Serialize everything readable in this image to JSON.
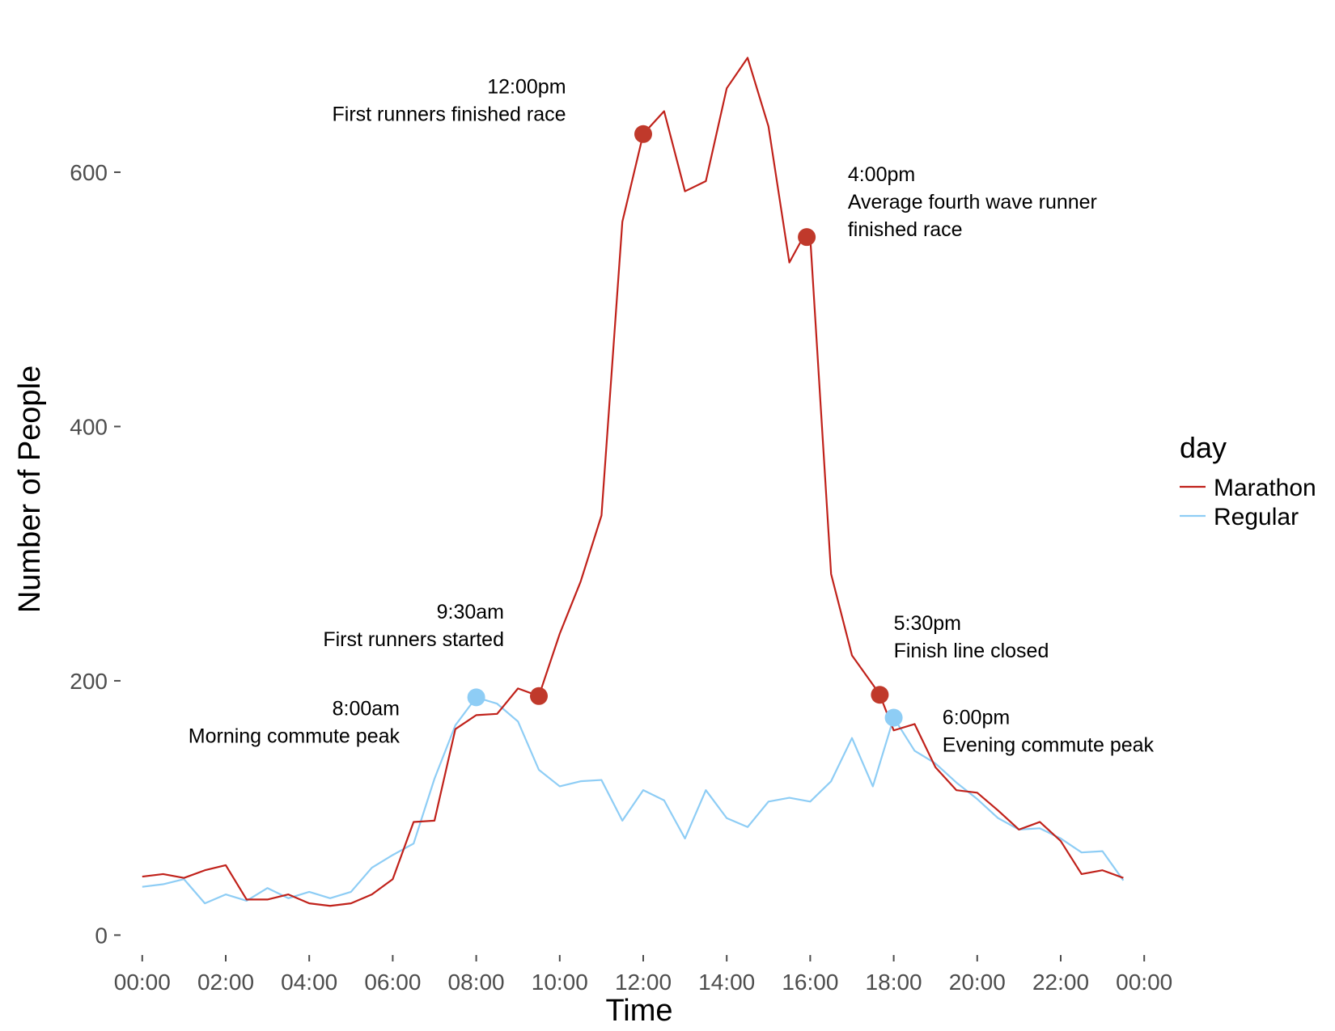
{
  "chart_data": {
    "type": "line",
    "xlabel": "Time",
    "ylabel": "Number of People",
    "ylim": [
      -15,
      710
    ],
    "x_range_hours": [
      -0.5,
      24.5
    ],
    "x_ticks": [
      "00:00",
      "02:00",
      "04:00",
      "06:00",
      "08:00",
      "10:00",
      "12:00",
      "14:00",
      "16:00",
      "18:00",
      "20:00",
      "22:00",
      "00:00"
    ],
    "y_ticks": [
      "0",
      "200",
      "400",
      "600"
    ],
    "y_tick_values": [
      0,
      200,
      400,
      600
    ],
    "grid": false,
    "legend": {
      "title": "day",
      "position": "right",
      "items": [
        "Marathon",
        "Regular"
      ]
    },
    "series": [
      {
        "name": "Marathon",
        "color": "#c0211a",
        "x": [
          "00:00",
          "00:30",
          "01:00",
          "01:30",
          "02:00",
          "02:30",
          "03:00",
          "03:30",
          "04:00",
          "04:30",
          "05:00",
          "05:30",
          "06:00",
          "06:30",
          "07:00",
          "07:30",
          "08:00",
          "08:30",
          "09:00",
          "09:30",
          "10:00",
          "10:30",
          "11:00",
          "11:30",
          "12:00",
          "12:30",
          "13:00",
          "13:30",
          "14:00",
          "14:30",
          "15:00",
          "15:30",
          "15:50",
          "16:00",
          "16:30",
          "17:00",
          "17:30",
          "17:40",
          "18:00",
          "18:30",
          "19:00",
          "19:30",
          "20:00",
          "20:30",
          "21:00",
          "21:30",
          "22:00",
          "22:30",
          "23:00",
          "23:30"
        ],
        "values": [
          46,
          48,
          45,
          51,
          55,
          28,
          28,
          32,
          25,
          23,
          25,
          32,
          44,
          89,
          90,
          162,
          173,
          174,
          194,
          188,
          237,
          278,
          330,
          561,
          630,
          648,
          585,
          593,
          666,
          690,
          636,
          529,
          549,
          549,
          284,
          220,
          197,
          189,
          161,
          166,
          132,
          114,
          112,
          98,
          83,
          89,
          74,
          48,
          51,
          45
        ]
      },
      {
        "name": "Regular",
        "color": "#8ecdf5",
        "x": [
          "00:00",
          "00:30",
          "01:00",
          "01:30",
          "02:00",
          "02:30",
          "03:00",
          "03:30",
          "04:00",
          "04:30",
          "05:00",
          "05:30",
          "06:00",
          "06:30",
          "07:00",
          "07:30",
          "08:00",
          "08:30",
          "09:00",
          "09:30",
          "10:00",
          "10:30",
          "11:00",
          "11:30",
          "12:00",
          "12:30",
          "13:00",
          "13:30",
          "14:00",
          "14:30",
          "15:00",
          "15:30",
          "16:00",
          "16:30",
          "17:00",
          "17:30",
          "18:00",
          "18:30",
          "19:00",
          "19:30",
          "20:00",
          "20:30",
          "21:00",
          "21:30",
          "22:00",
          "22:30",
          "23:00",
          "23:30"
        ],
        "values": [
          38,
          40,
          44,
          25,
          32,
          27,
          37,
          29,
          34,
          29,
          34,
          53,
          63,
          72,
          123,
          165,
          187,
          182,
          168,
          130,
          117,
          121,
          122,
          90,
          114,
          106,
          76,
          114,
          92,
          85,
          105,
          108,
          105,
          121,
          155,
          117,
          171,
          145,
          135,
          120,
          107,
          92,
          83,
          84,
          76,
          65,
          66,
          43
        ]
      }
    ],
    "highlight_points": [
      {
        "x": "08:00",
        "y": 187,
        "color": "#8ecdf5"
      },
      {
        "x": "09:30",
        "y": 188,
        "color": "#c0392b"
      },
      {
        "x": "12:00",
        "y": 630,
        "color": "#c0392b"
      },
      {
        "x": "15:55",
        "y": 549,
        "color": "#c0392b"
      },
      {
        "x": "17:40",
        "y": 189,
        "color": "#c0392b"
      },
      {
        "x": "18:00",
        "y": 171,
        "color": "#8ecdf5"
      }
    ],
    "annotations": [
      {
        "anchor_x": "10:09",
        "anchor_y": 662,
        "align": "end",
        "lines": [
          "12:00pm",
          "First runners finished race"
        ]
      },
      {
        "anchor_x": "16:54",
        "anchor_y": 593,
        "align": "start",
        "lines": [
          "4:00pm",
          "Average fourth wave runner",
          "finished race"
        ]
      },
      {
        "anchor_x": "08:40",
        "anchor_y": 249,
        "align": "end",
        "lines": [
          "9:30am",
          "First runners started"
        ]
      },
      {
        "anchor_x": "18:00",
        "anchor_y": 240,
        "align": "start",
        "lines": [
          "5:30pm",
          "Finish line closed"
        ]
      },
      {
        "anchor_x": "06:10",
        "anchor_y": 173,
        "align": "end",
        "lines": [
          "8:00am",
          "Morning commute peak"
        ]
      },
      {
        "anchor_x": "19:10",
        "anchor_y": 166,
        "align": "start",
        "lines": [
          "6:00pm",
          "Evening commute peak"
        ]
      }
    ]
  }
}
